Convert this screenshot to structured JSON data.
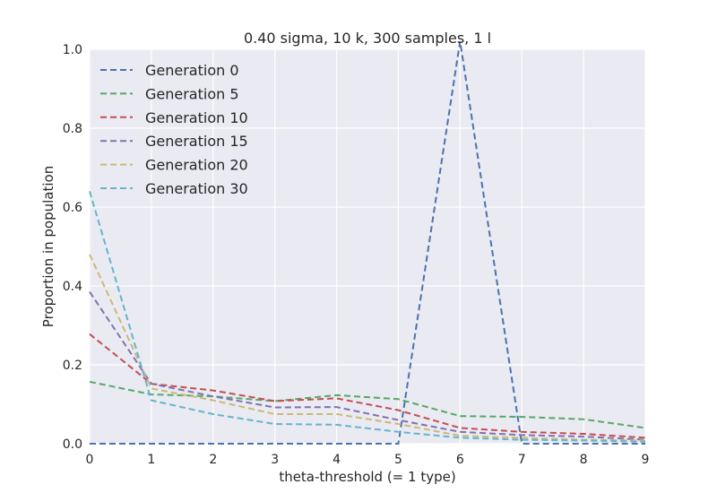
{
  "chart_data": {
    "type": "line",
    "title": "0.40 sigma, 10 k, 300 samples, 1 l",
    "xlabel": "theta-threshold (= 1 type)",
    "ylabel": "Proportion in population",
    "xlim": [
      0,
      9
    ],
    "ylim": [
      0,
      1.0
    ],
    "x": [
      0,
      1,
      2,
      3,
      4,
      5,
      6,
      7,
      8,
      9
    ],
    "xticks": [
      "0",
      "1",
      "2",
      "3",
      "4",
      "5",
      "6",
      "7",
      "8",
      "9"
    ],
    "yticks": [
      "0.0",
      "0.2",
      "0.4",
      "0.6",
      "0.8",
      "1.0"
    ],
    "grid": true,
    "legend_position": "top-left",
    "background": "#EAEAF2",
    "line_style": "dashed",
    "series": [
      {
        "name": "Generation 0",
        "color": "#4C72B0",
        "values": [
          0.0,
          0.0,
          0.0,
          0.0,
          0.0,
          0.0,
          1.02,
          0.0,
          0.0,
          0.0
        ]
      },
      {
        "name": "Generation 5",
        "color": "#55A868",
        "values": [
          0.157,
          0.125,
          0.12,
          0.108,
          0.123,
          0.113,
          0.07,
          0.068,
          0.062,
          0.04
        ]
      },
      {
        "name": "Generation 10",
        "color": "#C44E52",
        "values": [
          0.278,
          0.152,
          0.135,
          0.108,
          0.115,
          0.085,
          0.04,
          0.03,
          0.025,
          0.015
        ]
      },
      {
        "name": "Generation 15",
        "color": "#8172B2",
        "values": [
          0.385,
          0.152,
          0.12,
          0.092,
          0.093,
          0.06,
          0.03,
          0.022,
          0.018,
          0.01
        ]
      },
      {
        "name": "Generation 20",
        "color": "#CCB974",
        "values": [
          0.48,
          0.14,
          0.11,
          0.075,
          0.075,
          0.05,
          0.02,
          0.015,
          0.01,
          0.008
        ]
      },
      {
        "name": "Generation 30",
        "color": "#64B5CD",
        "values": [
          0.64,
          0.11,
          0.075,
          0.05,
          0.048,
          0.03,
          0.015,
          0.01,
          0.008,
          0.005
        ]
      }
    ]
  }
}
